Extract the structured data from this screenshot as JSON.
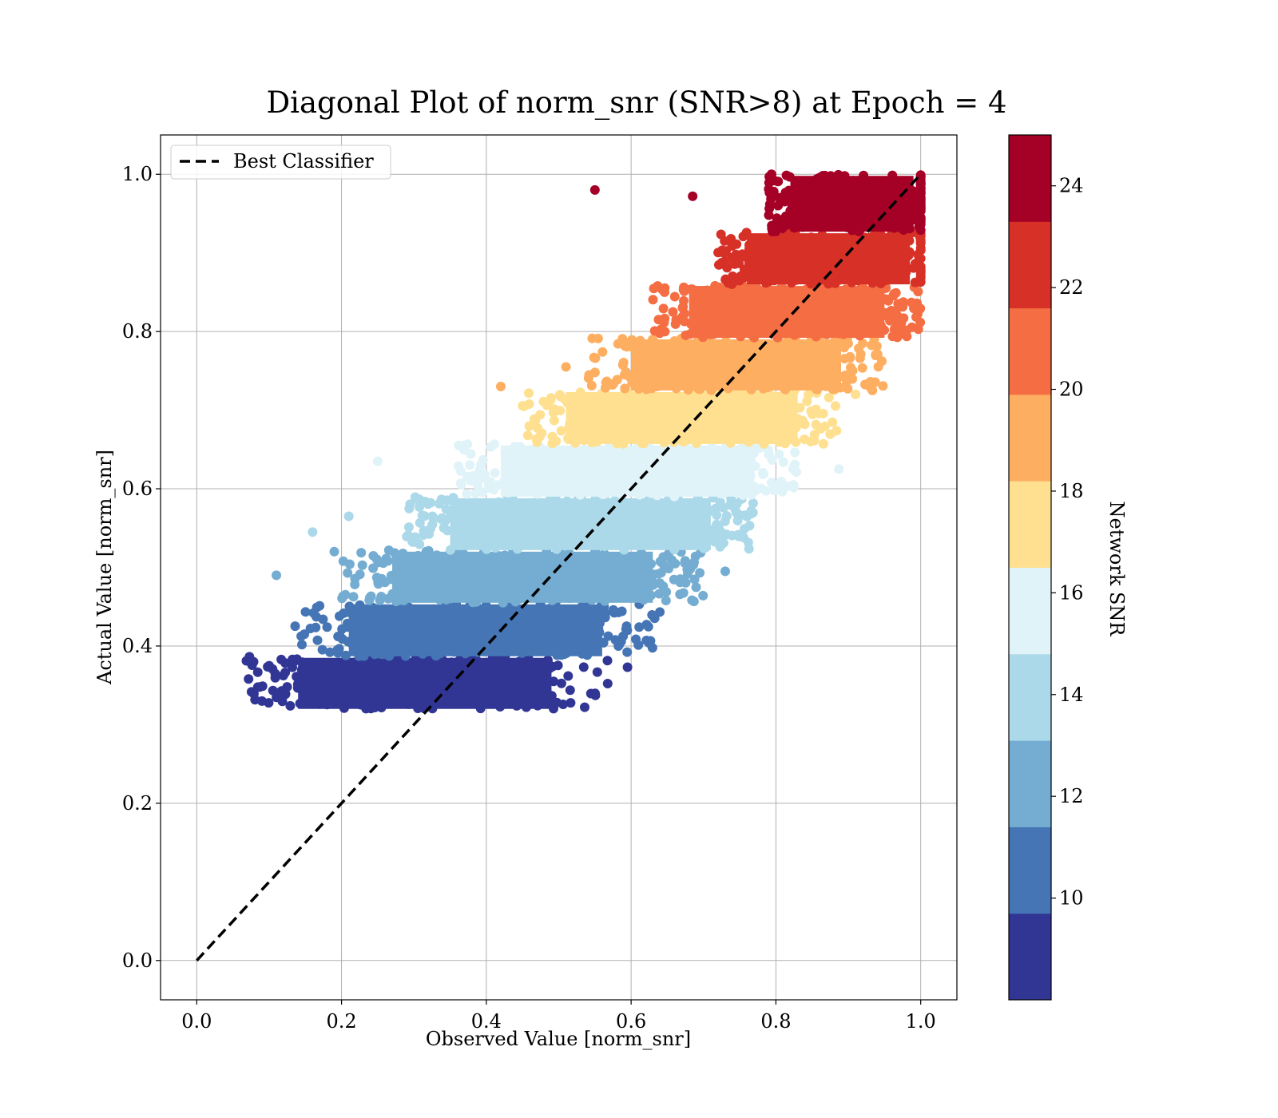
{
  "chart_data": {
    "type": "scatter",
    "title": "Diagonal Plot of norm_snr (SNR>8) at Epoch = 4",
    "xlabel": "Observed Value [norm_snr]",
    "ylabel": "Actual Value [norm_snr]",
    "xlim": [
      -0.05,
      1.05
    ],
    "ylim": [
      -0.05,
      1.05
    ],
    "xticks": [
      0.0,
      0.2,
      0.4,
      0.6,
      0.8,
      1.0
    ],
    "yticks": [
      0.0,
      0.2,
      0.4,
      0.6,
      0.8,
      1.0
    ],
    "xtick_labels": [
      "0.0",
      "0.2",
      "0.4",
      "0.6",
      "0.8",
      "1.0"
    ],
    "ytick_labels": [
      "0.0",
      "0.2",
      "0.4",
      "0.6",
      "0.8",
      "1.0"
    ],
    "grid": true,
    "legend": {
      "position": "upper-left",
      "entries": [
        "Best Classifier"
      ]
    },
    "reference_line": {
      "name": "Best Classifier",
      "style": "dashed",
      "color": "#000000",
      "x": [
        0.0,
        1.0
      ],
      "y": [
        0.0,
        1.0
      ]
    },
    "colorbar": {
      "label": "Network SNR",
      "range": [
        8.0,
        25.0
      ],
      "ticks": [
        10,
        12,
        14,
        16,
        18,
        20,
        22,
        24
      ],
      "tick_labels": [
        "10",
        "12",
        "14",
        "16",
        "18",
        "20",
        "22",
        "24"
      ],
      "colors": [
        "#313695",
        "#4575b4",
        "#74add1",
        "#abd9e9",
        "#e0f3f8",
        "#fee090",
        "#fdae61",
        "#f46d43",
        "#d73027",
        "#a50026"
      ]
    },
    "bands": [
      {
        "color": "#313695",
        "y_range": [
          0.32,
          0.387
        ],
        "x_core": [
          0.13,
          0.5
        ],
        "x_spread": 0.07
      },
      {
        "color": "#4575b4",
        "y_range": [
          0.387,
          0.455
        ],
        "x_core": [
          0.2,
          0.57
        ],
        "x_spread": 0.07
      },
      {
        "color": "#74add1",
        "y_range": [
          0.455,
          0.522
        ],
        "x_core": [
          0.26,
          0.64
        ],
        "x_spread": 0.06
      },
      {
        "color": "#abd9e9",
        "y_range": [
          0.522,
          0.59
        ],
        "x_core": [
          0.34,
          0.72
        ],
        "x_spread": 0.05
      },
      {
        "color": "#e0f3f8",
        "y_range": [
          0.59,
          0.657
        ],
        "x_core": [
          0.41,
          0.78
        ],
        "x_spread": 0.05
      },
      {
        "color": "#fee090",
        "y_range": [
          0.657,
          0.725
        ],
        "x_core": [
          0.5,
          0.84
        ],
        "x_spread": 0.05
      },
      {
        "color": "#fdae61",
        "y_range": [
          0.725,
          0.792
        ],
        "x_core": [
          0.59,
          0.9
        ],
        "x_spread": 0.05
      },
      {
        "color": "#f46d43",
        "y_range": [
          0.792,
          0.86
        ],
        "x_core": [
          0.67,
          0.96
        ],
        "x_spread": 0.04
      },
      {
        "color": "#d73027",
        "y_range": [
          0.86,
          0.927
        ],
        "x_core": [
          0.75,
          0.995
        ],
        "x_spread": 0.03
      },
      {
        "color": "#a50026",
        "y_range": [
          0.927,
          1.0
        ],
        "x_core": [
          0.81,
          1.0
        ],
        "x_spread": 0.02
      }
    ],
    "outliers": [
      {
        "x": 0.55,
        "y": 0.98,
        "color": "#a50026"
      },
      {
        "x": 0.685,
        "y": 0.972,
        "color": "#a50026"
      },
      {
        "x": 0.42,
        "y": 0.73,
        "color": "#fdae61"
      },
      {
        "x": 0.51,
        "y": 0.755,
        "color": "#fdae61"
      },
      {
        "x": 0.25,
        "y": 0.635,
        "color": "#e0f3f8"
      },
      {
        "x": 0.21,
        "y": 0.565,
        "color": "#abd9e9"
      },
      {
        "x": 0.16,
        "y": 0.545,
        "color": "#abd9e9"
      },
      {
        "x": 0.19,
        "y": 0.52,
        "color": "#74add1"
      },
      {
        "x": 0.11,
        "y": 0.49,
        "color": "#74add1"
      },
      {
        "x": 0.09,
        "y": 0.33,
        "color": "#313695"
      },
      {
        "x": 0.1,
        "y": 0.375,
        "color": "#313695"
      },
      {
        "x": 0.595,
        "y": 0.373,
        "color": "#313695"
      },
      {
        "x": 0.73,
        "y": 0.495,
        "color": "#74add1"
      },
      {
        "x": 0.887,
        "y": 0.625,
        "color": "#e0f3f8"
      },
      {
        "x": 0.91,
        "y": 0.72,
        "color": "#fee090"
      }
    ]
  }
}
